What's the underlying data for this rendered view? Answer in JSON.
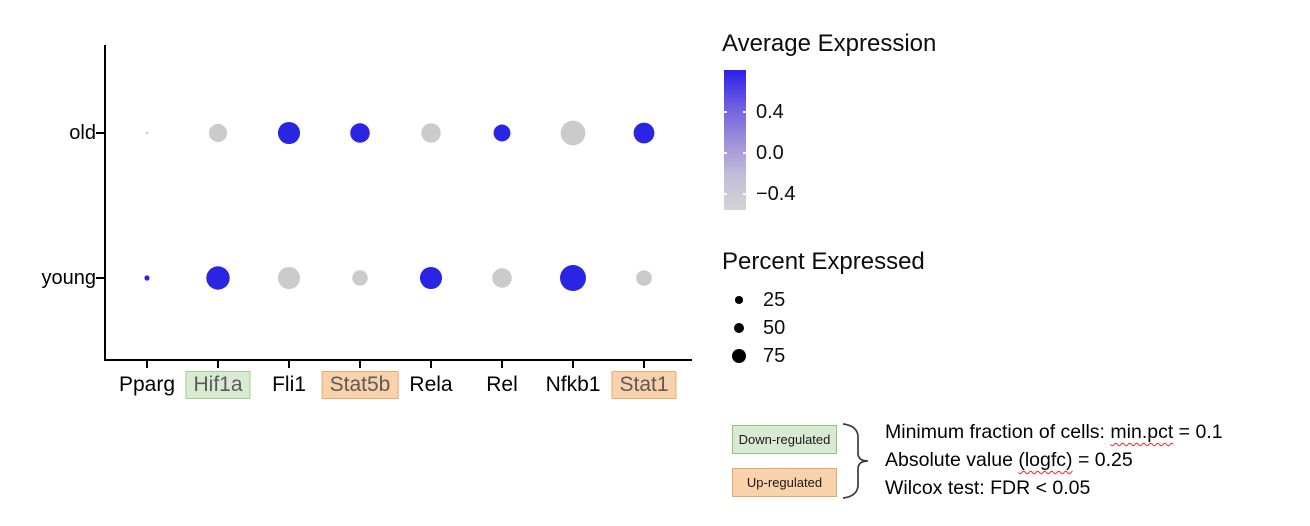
{
  "chart_data": {
    "type": "scatter",
    "subtype": "dot-plot",
    "x_categories": [
      "Pparg",
      "Hif1a",
      "Fli1",
      "Stat5b",
      "Rela",
      "Rel",
      "Nfkb1",
      "Stat1"
    ],
    "y_categories": [
      "old",
      "young"
    ],
    "gene_highlights": {
      "Hif1a": "down",
      "Stat5b": "up",
      "Stat1": "up"
    },
    "size_encoding": "percent_expressed",
    "color_encoding": "average_expression",
    "points": [
      {
        "gene": "Pparg",
        "group": "old",
        "percent": 10,
        "avg_expression": -0.4
      },
      {
        "gene": "Hif1a",
        "group": "old",
        "percent": 70,
        "avg_expression": -0.4
      },
      {
        "gene": "Fli1",
        "group": "old",
        "percent": 85,
        "avg_expression": 0.5
      },
      {
        "gene": "Stat5b",
        "group": "old",
        "percent": 75,
        "avg_expression": 0.5
      },
      {
        "gene": "Rela",
        "group": "old",
        "percent": 75,
        "avg_expression": -0.4
      },
      {
        "gene": "Rel",
        "group": "old",
        "percent": 65,
        "avg_expression": 0.5
      },
      {
        "gene": "Nfkb1",
        "group": "old",
        "percent": 95,
        "avg_expression": -0.4
      },
      {
        "gene": "Stat1",
        "group": "old",
        "percent": 80,
        "avg_expression": 0.5
      },
      {
        "gene": "Pparg",
        "group": "young",
        "percent": 20,
        "avg_expression": 0.5
      },
      {
        "gene": "Hif1a",
        "group": "young",
        "percent": 90,
        "avg_expression": 0.5
      },
      {
        "gene": "Fli1",
        "group": "young",
        "percent": 85,
        "avg_expression": -0.4
      },
      {
        "gene": "Stat5b",
        "group": "young",
        "percent": 60,
        "avg_expression": -0.4
      },
      {
        "gene": "Rela",
        "group": "young",
        "percent": 85,
        "avg_expression": 0.5
      },
      {
        "gene": "Rel",
        "group": "young",
        "percent": 75,
        "avg_expression": -0.4
      },
      {
        "gene": "Nfkb1",
        "group": "young",
        "percent": 100,
        "avg_expression": 0.5
      },
      {
        "gene": "Stat1",
        "group": "young",
        "percent": 60,
        "avg_expression": -0.4
      }
    ]
  },
  "legends": {
    "avg_expression": {
      "title": "Average Expression",
      "ticks": [
        "0.4",
        "0.0",
        "−0.4"
      ]
    },
    "percent_expressed": {
      "title": "Percent Expressed",
      "sizes": [
        25,
        50,
        75
      ],
      "labels": [
        "25",
        "50",
        "75"
      ]
    }
  },
  "annotation": {
    "down_label": "Down-regulated",
    "up_label": "Up-regulated",
    "notes": [
      {
        "pre": "Minimum fraction of cells: ",
        "mark": "min.pct",
        "post": " = 0.1"
      },
      {
        "pre": "Absolute value ",
        "mark": "(logfc)",
        "post": " = 0.25"
      },
      {
        "pre": "Wilcox test: FDR < 0.05",
        "mark": "",
        "post": ""
      }
    ]
  },
  "colors": {
    "dot_high": "#2a25e2",
    "dot_low": "#cbcbcb",
    "legend_dot": "#000000",
    "colorbar_stops": [
      "#2b1fe8",
      "#6b5ce2",
      "#9c8eda",
      "#c3bcd8",
      "#d3d3d3"
    ],
    "down_fill": "#d9ead3",
    "down_border": "#93c47d",
    "up_fill": "#f9d1ab",
    "up_border": "#e8a76c",
    "squiggle": "#ff1f1f",
    "axis": "#000000"
  }
}
